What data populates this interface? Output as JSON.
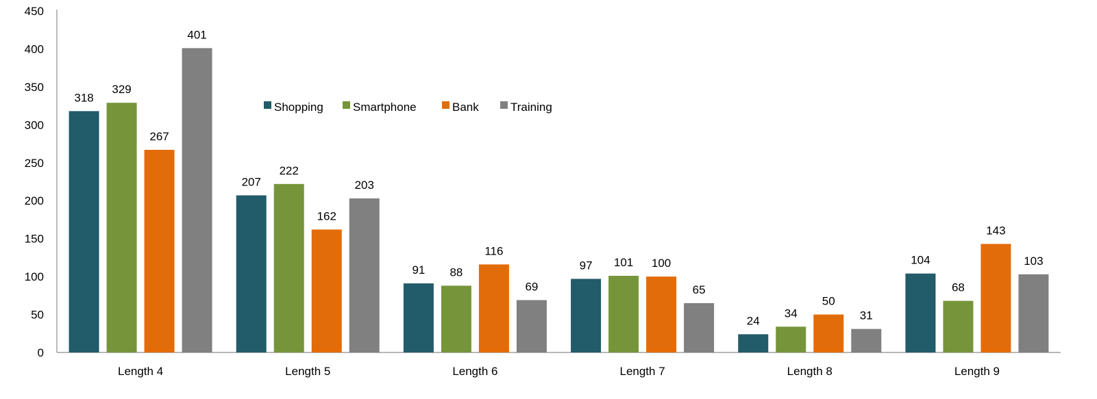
{
  "chart_data": {
    "type": "bar",
    "title": "",
    "xlabel": "",
    "ylabel": "",
    "categories": [
      "Length 4",
      "Length 5",
      "Length 6",
      "Length 7",
      "Length 8",
      "Length 9"
    ],
    "ylim": [
      0,
      450
    ],
    "yticks": [
      0,
      50,
      100,
      150,
      200,
      250,
      300,
      350,
      400,
      450
    ],
    "grid": false,
    "legend_position": "top-center-left",
    "data_labels": true,
    "series": [
      {
        "name": "Shopping",
        "color": "#225b69",
        "values": [
          318,
          207,
          91,
          97,
          24,
          104
        ]
      },
      {
        "name": "Smartphone",
        "color": "#76953b",
        "values": [
          329,
          222,
          88,
          101,
          34,
          68
        ]
      },
      {
        "name": "Bank",
        "color": "#e36c0a",
        "values": [
          267,
          162,
          116,
          100,
          50,
          143
        ]
      },
      {
        "name": "Training",
        "color": "#808080",
        "values": [
          401,
          203,
          69,
          65,
          31,
          103
        ]
      }
    ]
  }
}
